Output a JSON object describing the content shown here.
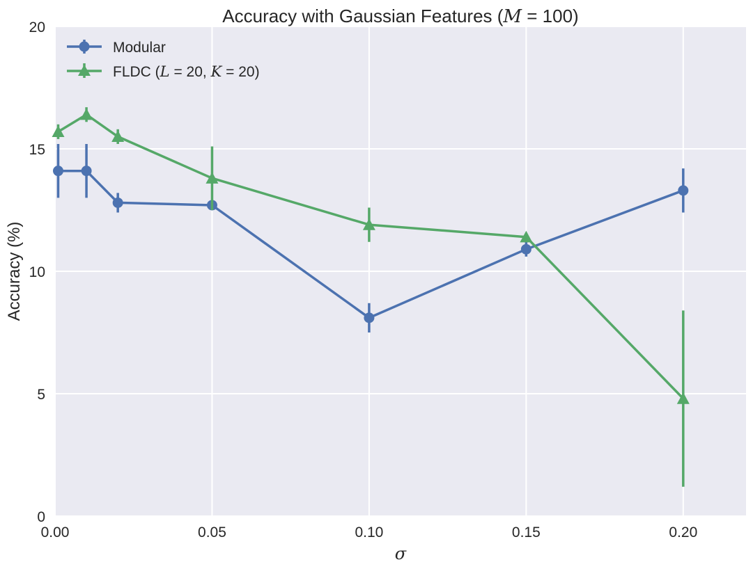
{
  "chart_data": {
    "type": "line",
    "title": "Accuracy with Gaussian Features (M = 100)",
    "xlabel": "σ",
    "ylabel": "Accuracy (%)",
    "xlim": [
      0.0,
      0.22
    ],
    "ylim": [
      0,
      20
    ],
    "xticks": [
      "0.00",
      "0.05",
      "0.10",
      "0.15",
      "0.20"
    ],
    "yticks": [
      "0",
      "5",
      "10",
      "15",
      "20"
    ],
    "grid": true,
    "legend_position": "top-left",
    "series": [
      {
        "name": "Modular",
        "marker": "circle",
        "color": "#4c72b0",
        "x": [
          0.001,
          0.01,
          0.02,
          0.05,
          0.1,
          0.15,
          0.2
        ],
        "y": [
          14.1,
          14.1,
          12.8,
          12.7,
          8.1,
          10.9,
          13.3
        ],
        "err": [
          1.1,
          1.1,
          0.4,
          0.2,
          0.6,
          0.3,
          0.9
        ]
      },
      {
        "name": "FLDC (L = 20, K = 20)",
        "marker": "triangle",
        "color": "#55a868",
        "x": [
          0.001,
          0.01,
          0.02,
          0.05,
          0.1,
          0.15,
          0.2
        ],
        "y": [
          15.7,
          16.4,
          15.5,
          13.8,
          11.9,
          11.4,
          4.8
        ],
        "err": [
          0.3,
          0.3,
          0.3,
          1.3,
          0.7,
          0.1,
          3.6
        ]
      }
    ]
  }
}
